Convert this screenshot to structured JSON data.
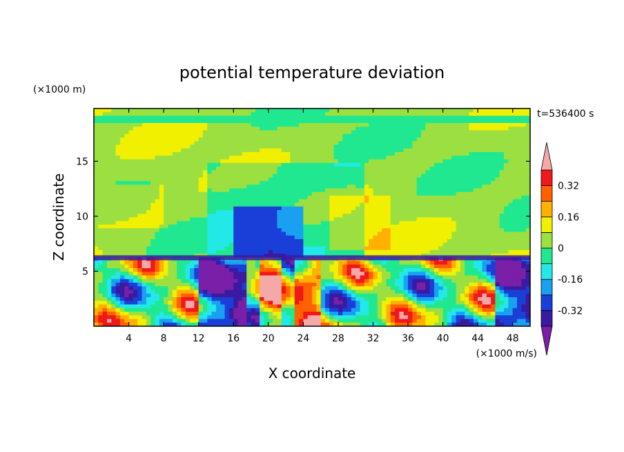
{
  "chart_data": {
    "type": "heatmap",
    "title": "potential temperature deviation",
    "xlabel": "X coordinate",
    "ylabel": "Z coordinate",
    "x_unit": "(×1000 m/s)",
    "y_unit": "(×1000 m)",
    "time_label": "t=536400 s",
    "xlim": [
      0,
      50
    ],
    "ylim": [
      0,
      19.8
    ],
    "x_ticks": [
      4,
      8,
      12,
      16,
      20,
      24,
      28,
      32,
      36,
      40,
      44,
      48
    ],
    "y_ticks": [
      5,
      10,
      15
    ],
    "colorbar": {
      "levels": [
        -0.4,
        -0.32,
        -0.24,
        -0.16,
        -0.08,
        0,
        0.08,
        0.16,
        0.24,
        0.32,
        0.4
      ],
      "tick_labels": [
        "-0.32",
        "-0.16",
        "0",
        "0.16",
        "0.32"
      ],
      "tick_values": [
        -0.32,
        -0.16,
        0,
        0.16,
        0.32
      ],
      "colors": [
        "#7a1fa8",
        "#3a1aa0",
        "#1a3fd8",
        "#1aa0f0",
        "#22e8e8",
        "#20e890",
        "#9be040",
        "#f0f000",
        "#ffb000",
        "#ff6000",
        "#f01818",
        "#f5a8a8"
      ]
    }
  },
  "labels": {
    "title": "potential temperature deviation",
    "xlabel": "X coordinate",
    "ylabel": "Z coordinate",
    "x_unit": "(×1000 m/s)",
    "y_unit": "(×1000 m)",
    "time_label": "t=536400 s"
  }
}
